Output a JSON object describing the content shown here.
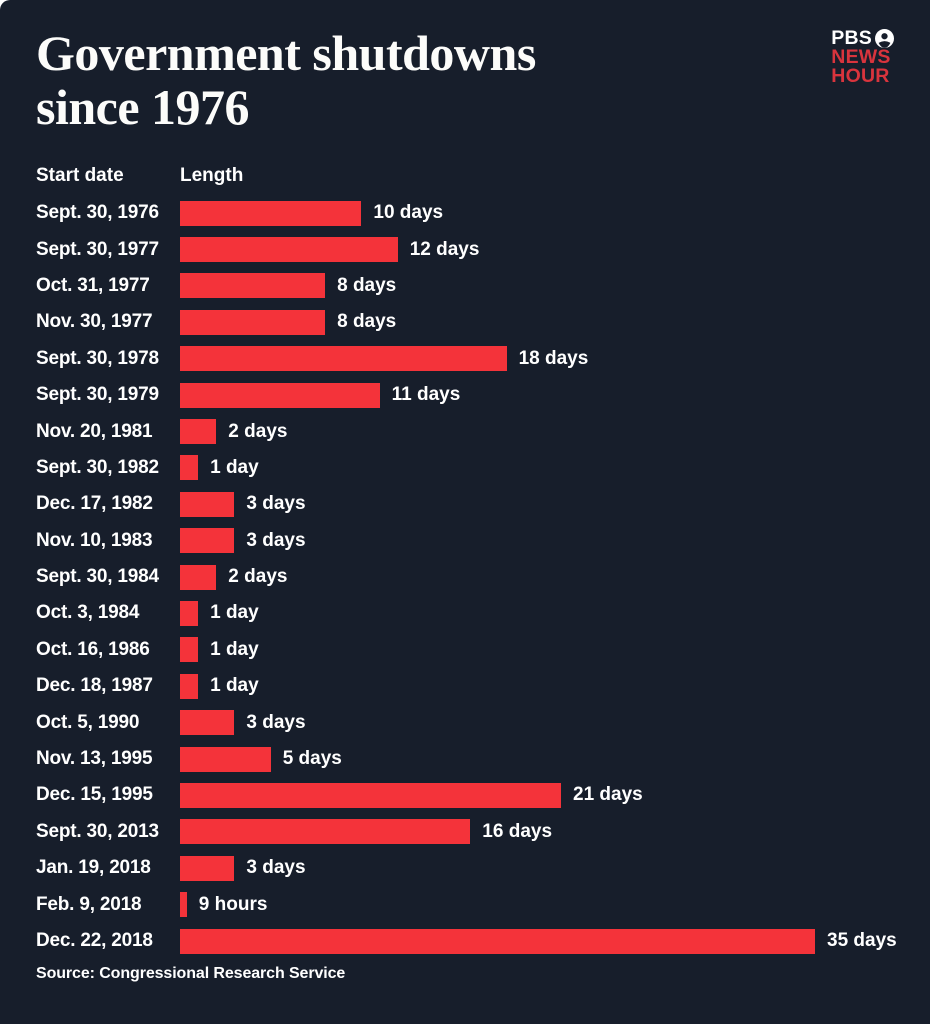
{
  "title": {
    "line1": "Government shutdowns",
    "line2": "since 1976"
  },
  "logo": {
    "pbs": "PBS",
    "news": "NEWS",
    "hour": "HOUR"
  },
  "table": {
    "col_date": "Start date",
    "col_length": "Length"
  },
  "source": "Source: Congressional Research Service",
  "colors": {
    "background": "#171e2b",
    "bar": "#f4333a",
    "logo_red": "#d9343d",
    "text": "#ffffff"
  },
  "chart_data": {
    "type": "bar",
    "orientation": "horizontal",
    "title": "Government shutdowns since 1976",
    "xlabel": "Length",
    "ylabel": "Start date",
    "unit": "days",
    "xlim": [
      0,
      35
    ],
    "grid": false,
    "legend": false,
    "categories": [
      "Sept. 30, 1976",
      "Sept. 30, 1977",
      "Oct. 31, 1977",
      "Nov. 30, 1977",
      "Sept. 30, 1978",
      "Sept. 30, 1979",
      "Nov. 20, 1981",
      "Sept. 30, 1982",
      "Dec. 17, 1982",
      "Nov. 10, 1983",
      "Sept. 30, 1984",
      "Oct. 3, 1984",
      "Oct. 16, 1986",
      "Dec. 18, 1987",
      "Oct. 5, 1990",
      "Nov. 13, 1995",
      "Dec. 15, 1995",
      "Sept. 30, 2013",
      "Jan. 19, 2018",
      "Feb. 9, 2018",
      "Dec. 22, 2018"
    ],
    "values": [
      10,
      12,
      8,
      8,
      18,
      11,
      2,
      1,
      3,
      3,
      2,
      1,
      1,
      1,
      3,
      5,
      21,
      16,
      3,
      0.375,
      35
    ],
    "value_labels": [
      "10 days",
      "12 days",
      "8 days",
      "8 days",
      "18 days",
      "11 days",
      "2 days",
      "1 day",
      "3 days",
      "3 days",
      "2 days",
      "1 day",
      "1 day",
      "1 day",
      "3 days",
      "5 days",
      "21 days",
      "16 days",
      "3 days",
      "9 hours",
      "35 days"
    ],
    "source": "Congressional Research Service"
  }
}
